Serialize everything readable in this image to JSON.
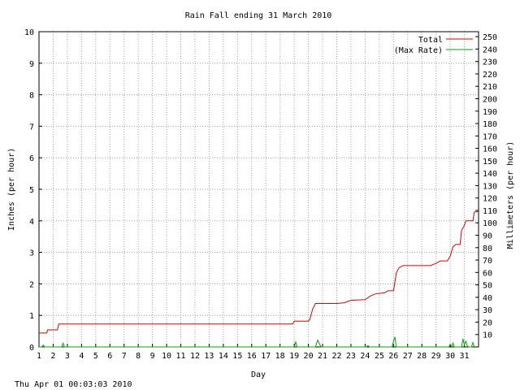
{
  "chart_data": {
    "type": "line",
    "title": "Rain Fall ending 31 March 2010",
    "xlabel": "Day",
    "ylabel_left": "Inches (per hour)",
    "ylabel_right": "Millimeters (per hour)",
    "xlim": [
      1,
      32
    ],
    "ylim": [
      0,
      10
    ],
    "ylim_right": [
      0,
      254
    ],
    "x_ticks": [
      "1",
      "2",
      "3",
      "4",
      "5",
      "6",
      "7",
      "8",
      "9",
      "10",
      "11",
      "12",
      "13",
      "14",
      "15",
      "16",
      "17",
      "18",
      "19",
      "20",
      "21",
      "22",
      "23",
      "24",
      "25",
      "26",
      "27",
      "28",
      "29",
      "30",
      "31"
    ],
    "y_ticks": [
      "0",
      "1",
      "2",
      "3",
      "4",
      "5",
      "6",
      "7",
      "8",
      "9",
      "10"
    ],
    "y_ticks_right": [
      "10",
      "20",
      "30",
      "40",
      "50",
      "60",
      "70",
      "80",
      "90",
      "100",
      "110",
      "120",
      "130",
      "140",
      "150",
      "160",
      "170",
      "180",
      "190",
      "200",
      "210",
      "220",
      "230",
      "240",
      "250"
    ],
    "grid": true,
    "legend_position": "top-right",
    "footer": "Thu Apr 01 00:03:03 2010",
    "colors": {
      "total": "#dd0000",
      "max_rate": "#00aa00",
      "grid": "#a0a0a0",
      "axis": "#000000"
    },
    "series": [
      {
        "name": "Total",
        "color": "#dd0000",
        "points": [
          [
            1,
            0.44
          ],
          [
            1.55,
            0.44
          ],
          [
            1.6,
            0.54
          ],
          [
            2.3,
            0.54
          ],
          [
            2.4,
            0.73
          ],
          [
            18.9,
            0.73
          ],
          [
            19.0,
            0.82
          ],
          [
            20.0,
            0.82
          ],
          [
            20.1,
            0.87
          ],
          [
            20.3,
            1.2
          ],
          [
            20.5,
            1.38
          ],
          [
            22.0,
            1.38
          ],
          [
            22.5,
            1.4
          ],
          [
            23.0,
            1.48
          ],
          [
            24.0,
            1.5
          ],
          [
            24.4,
            1.62
          ],
          [
            24.7,
            1.68
          ],
          [
            25.4,
            1.72
          ],
          [
            25.6,
            1.78
          ],
          [
            26.0,
            1.78
          ],
          [
            26.1,
            2.05
          ],
          [
            26.2,
            2.35
          ],
          [
            26.4,
            2.52
          ],
          [
            26.7,
            2.58
          ],
          [
            28.6,
            2.58
          ],
          [
            29.0,
            2.65
          ],
          [
            29.3,
            2.73
          ],
          [
            29.8,
            2.73
          ],
          [
            30.0,
            2.88
          ],
          [
            30.2,
            3.18
          ],
          [
            30.4,
            3.25
          ],
          [
            30.7,
            3.25
          ],
          [
            30.8,
            3.7
          ],
          [
            31.0,
            3.85
          ],
          [
            31.1,
            4.0
          ],
          [
            31.6,
            4.0
          ],
          [
            31.7,
            4.28
          ],
          [
            32,
            4.3
          ]
        ]
      },
      {
        "name": "(Max Rate)",
        "color": "#00aa00",
        "points": [
          [
            1,
            0
          ],
          [
            1.2,
            0
          ],
          [
            1.3,
            0.06
          ],
          [
            1.4,
            0
          ],
          [
            2.6,
            0
          ],
          [
            2.7,
            0.12
          ],
          [
            2.8,
            0
          ],
          [
            19.0,
            0
          ],
          [
            19.1,
            0.16
          ],
          [
            19.2,
            0
          ],
          [
            20.5,
            0
          ],
          [
            20.65,
            0.22
          ],
          [
            20.8,
            0.08
          ],
          [
            20.9,
            0
          ],
          [
            24.1,
            0
          ],
          [
            24.2,
            0.04
          ],
          [
            24.3,
            0
          ],
          [
            25.9,
            0
          ],
          [
            26.0,
            0.18
          ],
          [
            26.1,
            0.32
          ],
          [
            26.2,
            0
          ],
          [
            29.9,
            0
          ],
          [
            30.0,
            0.08
          ],
          [
            30.1,
            0
          ],
          [
            30.2,
            0.12
          ],
          [
            30.3,
            0
          ],
          [
            30.8,
            0
          ],
          [
            30.9,
            0.26
          ],
          [
            31.0,
            0.06
          ],
          [
            31.1,
            0.18
          ],
          [
            31.2,
            0.04
          ],
          [
            31.3,
            0
          ],
          [
            31.5,
            0
          ],
          [
            31.6,
            0.14
          ],
          [
            31.7,
            0
          ]
        ]
      }
    ]
  }
}
